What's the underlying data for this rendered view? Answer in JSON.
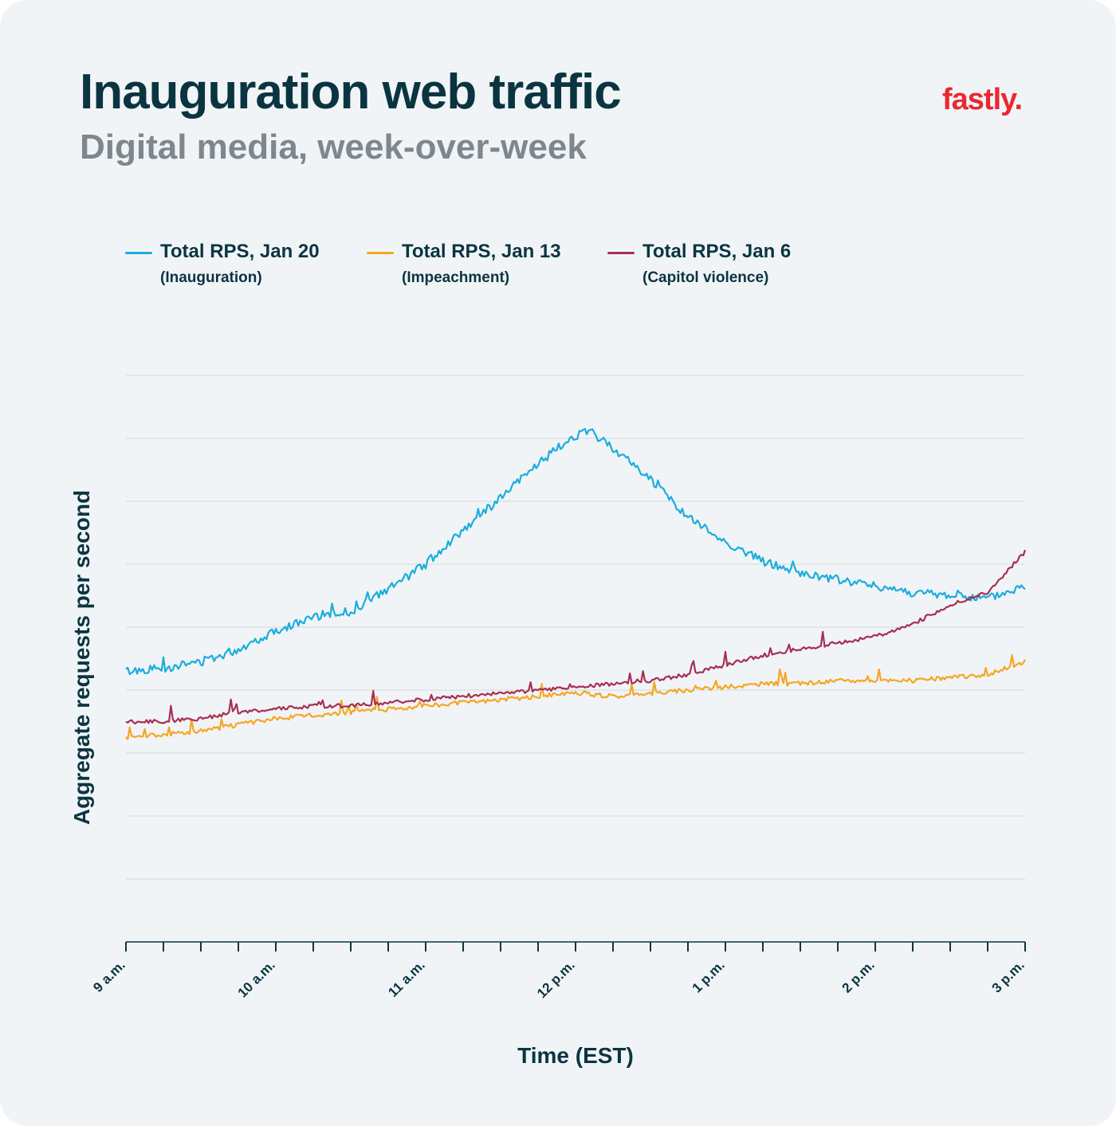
{
  "header": {
    "title": "Inauguration web traffic",
    "subtitle": "Digital media, week-over-week",
    "brand": "fastly."
  },
  "colors": {
    "background": "#f1f4f7",
    "title": "#0a3540",
    "subtitle": "#7d878d",
    "brand": "#ea2830",
    "grid": "#d3d8dc",
    "jan20": "#19aedc",
    "jan13": "#f5a623",
    "jan6": "#a82f52"
  },
  "chart_data": {
    "type": "line",
    "title": "Inauguration web traffic",
    "subtitle": "Digital media, week-over-week",
    "xlabel": "Time (EST)",
    "ylabel": "Aggregate requests per second",
    "x_tick_labels": [
      "9 a.m.",
      "10 a.m.",
      "11 a.m.",
      "12 p.m.",
      "1 p.m.",
      "2 p.m.",
      "3 p.m."
    ],
    "x_range": [
      9,
      15
    ],
    "x_minor_ticks": 24,
    "y_range": [
      0,
      9
    ],
    "y_gridlines": 9,
    "y_tick_labels_shown": false,
    "grid": true,
    "legend_position": "top-left",
    "series": [
      {
        "name": "Total RPS, Jan 20",
        "note": "(Inauguration)",
        "color": "#19aedc",
        "x": [
          9,
          9.25,
          9.5,
          9.75,
          10,
          10.25,
          10.5,
          10.75,
          11,
          11.25,
          11.5,
          11.75,
          12,
          12.1,
          12.25,
          12.5,
          12.75,
          13,
          13.25,
          13.5,
          13.75,
          14,
          14.25,
          14.5,
          14.75,
          15
        ],
        "values": [
          4.3,
          4.35,
          4.45,
          4.65,
          4.95,
          5.15,
          5.25,
          5.6,
          6.0,
          6.55,
          7.05,
          7.6,
          8.05,
          8.1,
          7.85,
          7.35,
          6.75,
          6.35,
          6.05,
          5.85,
          5.75,
          5.65,
          5.55,
          5.5,
          5.45,
          5.65
        ]
      },
      {
        "name": "Total RPS, Jan 13",
        "note": "(Impeachment)",
        "color": "#f5a623",
        "x": [
          9,
          9.25,
          9.5,
          9.75,
          10,
          10.25,
          10.5,
          10.75,
          11,
          11.25,
          11.5,
          11.75,
          12,
          12.25,
          12.5,
          12.75,
          13,
          13.25,
          13.5,
          13.75,
          14,
          14.25,
          14.5,
          14.75,
          15
        ],
        "values": [
          3.25,
          3.3,
          3.35,
          3.45,
          3.55,
          3.6,
          3.65,
          3.7,
          3.75,
          3.8,
          3.85,
          3.9,
          3.95,
          3.9,
          3.95,
          4.0,
          4.05,
          4.1,
          4.1,
          4.15,
          4.15,
          4.15,
          4.2,
          4.25,
          4.45
        ]
      },
      {
        "name": "Total RPS, Jan 6",
        "note": "(Capitol violence)",
        "color": "#a82f52",
        "x": [
          9,
          9.25,
          9.5,
          9.75,
          10,
          10.25,
          10.5,
          10.75,
          11,
          11.25,
          11.5,
          11.75,
          12,
          12.25,
          12.5,
          12.75,
          13,
          13.25,
          13.5,
          13.75,
          14,
          14.25,
          14.5,
          14.75,
          15
        ],
        "values": [
          3.5,
          3.5,
          3.55,
          3.65,
          3.7,
          3.75,
          3.75,
          3.8,
          3.85,
          3.9,
          3.95,
          4.0,
          4.05,
          4.1,
          4.15,
          4.25,
          4.4,
          4.55,
          4.65,
          4.75,
          4.85,
          5.05,
          5.35,
          5.55,
          6.2
        ]
      }
    ]
  }
}
